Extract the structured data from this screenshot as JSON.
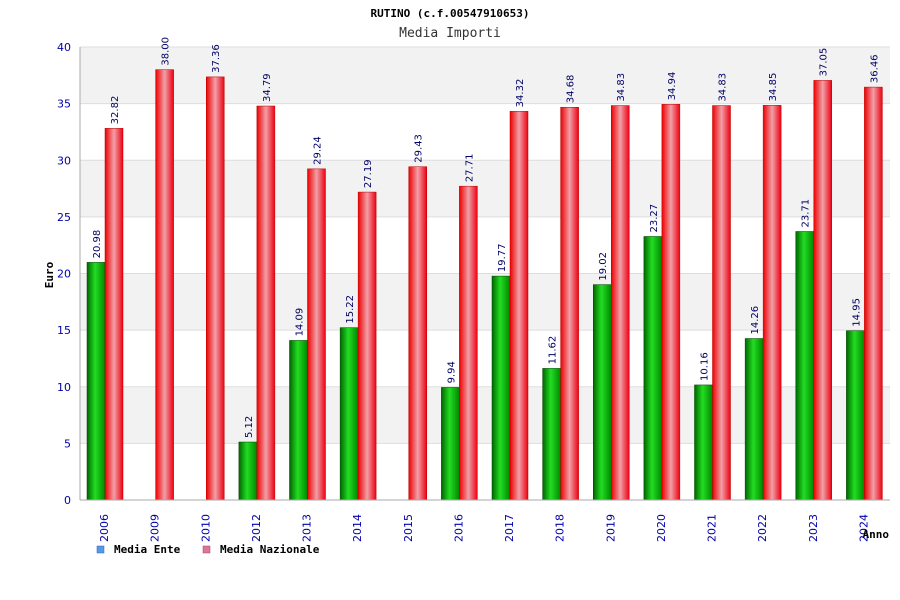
{
  "colors": {
    "ente": "#00a000",
    "nazionale": "#ee1122",
    "legend_ente": "#5599ee",
    "legend_nazionale": "#dd7799",
    "band": "#f2f2f2",
    "axis_text": "#0000aa"
  },
  "chart_data": {
    "type": "bar",
    "title": "RUTINO (c.f.00547910653)",
    "subtitle": "Media Importi",
    "ylabel": "Euro",
    "xlabel": "Anno",
    "ylim": [
      0,
      40
    ],
    "yticks": [
      "0",
      "5",
      "10",
      "15",
      "20",
      "25",
      "30",
      "35",
      "40"
    ],
    "categories": [
      "2006",
      "2009",
      "2010",
      "2012",
      "2013",
      "2014",
      "2015",
      "2016",
      "2017",
      "2018",
      "2019",
      "2020",
      "2021",
      "2022",
      "2023",
      "2024"
    ],
    "series": [
      {
        "name": "Media Ente",
        "values": [
          20.98,
          null,
          null,
          5.12,
          14.09,
          15.22,
          null,
          9.94,
          19.77,
          11.62,
          19.02,
          23.27,
          10.16,
          14.26,
          23.71,
          14.95
        ],
        "labels": [
          "20.98",
          "",
          "",
          "5.12",
          "14.09",
          "15.22",
          "",
          "9.94",
          "19.77",
          "11.62",
          "19.02",
          "23.27",
          "10.16",
          "14.26",
          "23.71",
          "14.95"
        ]
      },
      {
        "name": "Media Nazionale",
        "values": [
          32.82,
          38.0,
          37.36,
          34.79,
          29.24,
          27.19,
          29.43,
          27.71,
          34.32,
          34.68,
          34.83,
          34.94,
          34.83,
          34.85,
          37.05,
          36.46
        ],
        "labels": [
          "32.82",
          "38.00",
          "37.36",
          "34.79",
          "29.24",
          "27.19",
          "29.43",
          "27.71",
          "34.32",
          "34.68",
          "34.83",
          "34.94",
          "34.83",
          "34.85",
          "37.05",
          "36.46"
        ]
      }
    ]
  }
}
